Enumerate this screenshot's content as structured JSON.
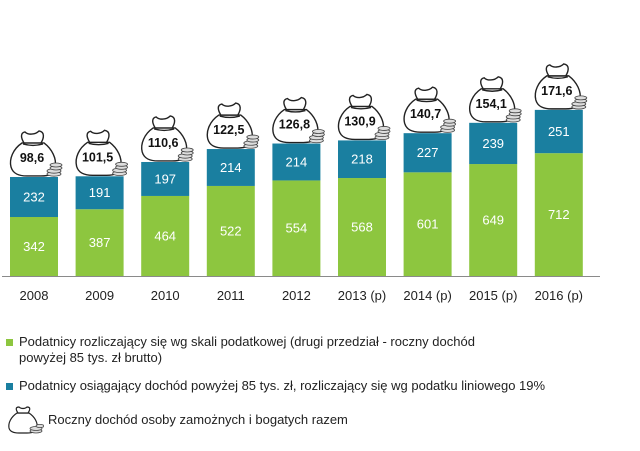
{
  "chart_data": {
    "type": "bar",
    "stacked": true,
    "categories": [
      "2008",
      "2009",
      "2010",
      "2011",
      "2012",
      "2013 (p)",
      "2014 (p)",
      "2015 (p)",
      "2016 (p)"
    ],
    "series": [
      {
        "name": "Podatnicy rozliczający się wg skali podatkowej (drugi przedział - roczny dochód powyżej 85 tys. zł brutto)",
        "color": "#8dc63f",
        "values": [
          342,
          387,
          464,
          522,
          554,
          568,
          601,
          649,
          712
        ]
      },
      {
        "name": "Podatnicy osiągający dochód powyżej 85 tys. zł, rozliczający się wg podatku liniowego 19%",
        "color": "#1a7fa0",
        "values": [
          232,
          191,
          197,
          214,
          214,
          218,
          227,
          239,
          251
        ]
      }
    ],
    "bag_series": {
      "name": "Roczny dochód osoby zamożnych i bogatych razem",
      "labels": [
        "98,6",
        "101,5",
        "110,6",
        "122,5",
        "126,8",
        "130,9",
        "140,7",
        "154,1",
        "171,6"
      ],
      "values": [
        98.6,
        101.5,
        110.6,
        122.5,
        126.8,
        130.9,
        140.7,
        154.1,
        171.6
      ]
    },
    "legend_position": "bottom",
    "grid": false
  },
  "legend": {
    "green": "Podatnicy rozliczający się wg skali podatkowej (drugi przedział - roczny dochód\npowyżej 85 tys. zł brutto)",
    "blue": "Podatnicy osiągający dochód powyżej 85 tys. zł, rozliczający się wg podatku liniowego 19%",
    "bag": "Roczny dochód osoby zamożnych i bogatych razem"
  },
  "colors": {
    "green": "#8dc63f",
    "blue": "#1a7fa0",
    "baseline": "#8a8a8a"
  }
}
